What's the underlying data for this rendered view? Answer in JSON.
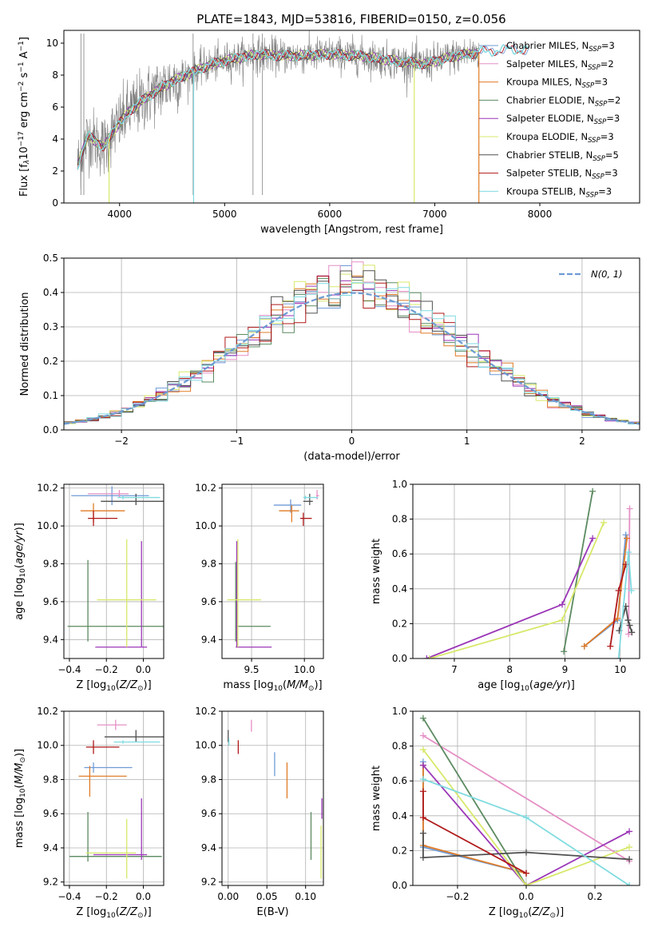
{
  "figure_title": "PLATE=1843, MJD=53816, FIBERID=0150, z=0.056",
  "colors": {
    "chabrier_miles": "#6f9bd6",
    "salpeter_miles": "#e58fc5",
    "kroupa_miles": "#e07b26",
    "chabrier_elodie": "#5b8a60",
    "salpeter_elodie": "#9b36b7",
    "kroupa_elodie": "#d8e86a",
    "chabrier_stelib": "#505050",
    "salpeter_stelib": "#b01818",
    "kroupa_stelib": "#7fdbe0",
    "data": "#808080",
    "gauss": "#6e9bd2"
  },
  "chart_data": [
    {
      "id": "spectrum",
      "type": "line",
      "xlabel": "wavelength [Angstrom, rest frame]",
      "ylabel": "Flux [f_λ10^-17 erg cm^-2 s^-1 A^-1]",
      "xlim": [
        3470,
        8950
      ],
      "ylim": [
        0,
        10.8
      ],
      "xticks": [
        4000,
        5000,
        6000,
        7000,
        8000
      ],
      "yticks": [
        0,
        2,
        4,
        6,
        8,
        10
      ],
      "continuum_x": [
        3600,
        3700,
        3850,
        3950,
        4100,
        4300,
        4500,
        4800,
        5000,
        5300,
        5600,
        6000,
        6300,
        6600,
        6900,
        7200,
        7500,
        7700,
        7900
      ],
      "continuum_y": [
        2.4,
        4.2,
        3.5,
        4.6,
        5.8,
        6.8,
        7.6,
        8.5,
        8.9,
        9.3,
        9.2,
        9.3,
        9.2,
        8.9,
        8.7,
        9.2,
        9.5,
        9.6,
        9.6
      ],
      "legend": [
        {
          "label": "Chabrier MILES, N",
          "sub": "SSP",
          "suffix": "=3",
          "color_key": "chabrier_miles"
        },
        {
          "label": "Salpeter MILES, N",
          "sub": "SSP",
          "suffix": "=2",
          "color_key": "salpeter_miles"
        },
        {
          "label": "Kroupa MILES, N",
          "sub": "SSP",
          "suffix": "=3",
          "color_key": "kroupa_miles"
        },
        {
          "label": "Chabrier ELODIE, N",
          "sub": "SSP",
          "suffix": "=2",
          "color_key": "chabrier_elodie"
        },
        {
          "label": "Salpeter ELODIE, N",
          "sub": "SSP",
          "suffix": "=3",
          "color_key": "salpeter_elodie"
        },
        {
          "label": "Kroupa ELODIE, N",
          "sub": "SSP",
          "suffix": "=3",
          "color_key": "kroupa_elodie"
        },
        {
          "label": "Chabrier STELIB, N",
          "sub": "SSP",
          "suffix": "=5",
          "color_key": "chabrier_stelib"
        },
        {
          "label": "Salpeter STELIB, N",
          "sub": "SSP",
          "suffix": "=3",
          "color_key": "salpeter_stelib"
        },
        {
          "label": "Kroupa STELIB, N",
          "sub": "SSP",
          "suffix": "=3",
          "color_key": "kroupa_stelib"
        }
      ]
    },
    {
      "id": "residuals",
      "type": "line",
      "xlabel": "(data-model)/error",
      "ylabel": "Normed distribution",
      "xlim": [
        -2.5,
        2.5
      ],
      "ylim": [
        0,
        0.5
      ],
      "xticks": [
        -2,
        -1,
        0,
        1,
        2
      ],
      "yticks": [
        0.0,
        0.1,
        0.2,
        0.3,
        0.4,
        0.5
      ],
      "legend_label": "N(0,1)",
      "gauss_sigma": 1
    },
    {
      "id": "age_vs_z",
      "type": "scatter",
      "xlabel": "Z [log10(Z/Z☉)]",
      "ylabel": "age  [log10(age/yr)]",
      "xlim": [
        -0.43,
        0.11
      ],
      "ylim": [
        9.3,
        10.22
      ],
      "xticks": [
        -0.4,
        -0.2,
        0.0
      ],
      "yticks": [
        9.4,
        9.6,
        9.8,
        10.0,
        10.2
      ],
      "points": [
        {
          "c": "chabrier_miles",
          "x": -0.17,
          "y": 10.16,
          "ex": [
            0.22,
            0.2
          ],
          "ey": [
            0.05,
            0.05
          ]
        },
        {
          "c": "salpeter_miles",
          "x": -0.13,
          "y": 10.17,
          "ex": [
            0.17,
            0.05
          ],
          "ey": [
            0.02,
            0.02
          ]
        },
        {
          "c": "kroupa_miles",
          "x": -0.27,
          "y": 10.08,
          "ex": [
            0.07,
            0.17
          ],
          "ey": [
            0.06,
            0.04
          ]
        },
        {
          "c": "chabrier_elodie",
          "x": -0.3,
          "y": 9.47,
          "ex": [
            0.11,
            0.42
          ],
          "ey": [
            0.08,
            0.35
          ]
        },
        {
          "c": "salpeter_elodie",
          "x": -0.01,
          "y": 9.36,
          "ex": [
            0.25,
            0.03
          ],
          "ey": [
            0.0,
            0.56
          ]
        },
        {
          "c": "kroupa_elodie",
          "x": -0.09,
          "y": 9.61,
          "ex": [
            0.16,
            0.16
          ],
          "ey": [
            0.25,
            0.32
          ]
        },
        {
          "c": "chabrier_stelib",
          "x": -0.04,
          "y": 10.13,
          "ex": [
            0.19,
            0.17
          ],
          "ey": [
            0.02,
            0.04
          ]
        },
        {
          "c": "salpeter_stelib",
          "x": -0.27,
          "y": 10.04,
          "ex": [
            0.03,
            0.13
          ],
          "ey": [
            0.04,
            0.04
          ]
        },
        {
          "c": "kroupa_stelib",
          "x": -0.11,
          "y": 10.15,
          "ex": [
            0.03,
            0.2
          ],
          "ey": [
            0.01,
            0.01
          ]
        }
      ]
    },
    {
      "id": "age_vs_mass",
      "type": "scatter",
      "xlabel": "mass [log10(M/M☉)]",
      "ylabel": "",
      "xlim": [
        9.22,
        10.18
      ],
      "ylim": [
        9.3,
        10.22
      ],
      "xticks": [
        9.5,
        10.0
      ],
      "yticks": [
        9.4,
        9.6,
        9.8,
        10.0,
        10.2
      ],
      "points": [
        {
          "c": "chabrier_miles",
          "x": 9.87,
          "y": 10.11,
          "ex": [
            0.16,
            0.1
          ],
          "ey": [
            0.04,
            0.03
          ]
        },
        {
          "c": "salpeter_miles",
          "x": 10.12,
          "y": 10.16,
          "ex": [
            0.01,
            0.02
          ],
          "ey": [
            0.02,
            0.03
          ]
        },
        {
          "c": "kroupa_miles",
          "x": 9.88,
          "y": 10.08,
          "ex": [
            0.12,
            0.07
          ],
          "ey": [
            0.06,
            0.03
          ]
        },
        {
          "c": "chabrier_elodie",
          "x": 9.35,
          "y": 9.47,
          "ex": [
            0.0,
            0.33
          ],
          "ey": [
            0.08,
            0.34
          ]
        },
        {
          "c": "salpeter_elodie",
          "x": 9.36,
          "y": 9.36,
          "ex": [
            0.01,
            0.33
          ],
          "ey": [
            0.0,
            0.56
          ]
        },
        {
          "c": "kroupa_elodie",
          "x": 9.37,
          "y": 9.61,
          "ex": [
            0.1,
            0.22
          ],
          "ey": [
            0.25,
            0.32
          ]
        },
        {
          "c": "chabrier_stelib",
          "x": 10.05,
          "y": 10.13,
          "ex": [
            0.06,
            0.03
          ],
          "ey": [
            0.02,
            0.04
          ]
        },
        {
          "c": "salpeter_stelib",
          "x": 9.99,
          "y": 10.04,
          "ex": [
            0.03,
            0.08
          ],
          "ey": [
            0.04,
            0.03
          ]
        },
        {
          "c": "kroupa_stelib",
          "x": 10.01,
          "y": 10.15,
          "ex": [
            0.02,
            0.12
          ],
          "ey": [
            0.01,
            0.01
          ]
        }
      ]
    },
    {
      "id": "weight_vs_age",
      "type": "line",
      "xlabel": "age  [log10(age/yr)]",
      "ylabel": "mass weight",
      "xlim": [
        6.25,
        10.35
      ],
      "ylim": [
        0,
        1.0
      ],
      "xticks": [
        7,
        8,
        9,
        10
      ],
      "yticks": [
        0.0,
        0.2,
        0.4,
        0.6,
        0.8,
        1.0
      ],
      "series": [
        {
          "c": "chabrier_miles",
          "x": [
            9.35,
            9.95,
            10.1
          ],
          "y": [
            0.07,
            0.22,
            0.71
          ]
        },
        {
          "c": "salpeter_miles",
          "x": [
            10.15,
            10.17
          ],
          "y": [
            0.14,
            0.86
          ]
        },
        {
          "c": "kroupa_miles",
          "x": [
            9.35,
            9.95,
            10.12
          ],
          "y": [
            0.07,
            0.23,
            0.69
          ]
        },
        {
          "c": "chabrier_elodie",
          "x": [
            8.98,
            9.5
          ],
          "y": [
            0.04,
            0.96
          ]
        },
        {
          "c": "salpeter_elodie",
          "x": [
            6.5,
            8.95,
            9.5
          ],
          "y": [
            0.0,
            0.31,
            0.69
          ]
        },
        {
          "c": "kroupa_elodie",
          "x": [
            6.55,
            8.95,
            9.7
          ],
          "y": [
            0.0,
            0.22,
            0.78
          ]
        },
        {
          "c": "chabrier_stelib",
          "x": [
            9.98,
            10.1,
            10.14,
            10.17,
            10.21
          ],
          "y": [
            0.16,
            0.3,
            0.22,
            0.19,
            0.15
          ]
        },
        {
          "c": "salpeter_stelib",
          "x": [
            9.82,
            9.97,
            10.1
          ],
          "y": [
            0.07,
            0.39,
            0.54
          ]
        },
        {
          "c": "kroupa_stelib",
          "x": [
            9.97,
            10.15,
            10.2
          ],
          "y": [
            0.0,
            0.61,
            0.39
          ]
        }
      ]
    },
    {
      "id": "mass_vs_z",
      "type": "scatter",
      "xlabel": "Z [log10(Z/Z☉)]",
      "ylabel": "mass [log10(M/M☉)]",
      "xlim": [
        -0.43,
        0.11
      ],
      "ylim": [
        9.18,
        10.2
      ],
      "xticks": [
        -0.4,
        -0.2,
        0.0
      ],
      "yticks": [
        9.2,
        9.4,
        9.6,
        9.8,
        10.0,
        10.2
      ],
      "points": [
        {
          "c": "chabrier_miles",
          "x": -0.27,
          "y": 9.87,
          "ex": [
            0.05,
            0.21
          ],
          "ey": [
            0.03,
            0.03
          ]
        },
        {
          "c": "salpeter_miles",
          "x": -0.15,
          "y": 10.12,
          "ex": [
            0.1,
            0.06
          ],
          "ey": [
            0.03,
            0.03
          ]
        },
        {
          "c": "kroupa_miles",
          "x": -0.29,
          "y": 9.82,
          "ex": [
            0.06,
            0.2
          ],
          "ey": [
            0.12,
            0.06
          ]
        },
        {
          "c": "chabrier_elodie",
          "x": -0.3,
          "y": 9.35,
          "ex": [
            0.1,
            0.4
          ],
          "ey": [
            0.03,
            0.26
          ]
        },
        {
          "c": "salpeter_elodie",
          "x": -0.01,
          "y": 9.36,
          "ex": [
            0.26,
            0.03
          ],
          "ey": [
            0.03,
            0.33
          ]
        },
        {
          "c": "kroupa_elodie",
          "x": -0.09,
          "y": 9.37,
          "ex": [
            0.22,
            0.05
          ],
          "ey": [
            0.15,
            0.2
          ]
        },
        {
          "c": "chabrier_stelib",
          "x": -0.04,
          "y": 10.05,
          "ex": [
            0.17,
            0.15
          ],
          "ey": [
            0.03,
            0.04
          ]
        },
        {
          "c": "salpeter_stelib",
          "x": -0.27,
          "y": 9.99,
          "ex": [
            0.04,
            0.14
          ],
          "ey": [
            0.04,
            0.04
          ]
        },
        {
          "c": "kroupa_stelib",
          "x": -0.11,
          "y": 10.02,
          "ex": [
            0.05,
            0.2
          ],
          "ey": [
            0.01,
            0.01
          ]
        }
      ]
    },
    {
      "id": "mass_vs_ebv",
      "type": "scatter",
      "xlabel": "E(B-V)",
      "ylabel": "",
      "xlim": [
        -0.008,
        0.123
      ],
      "ylim": [
        9.18,
        10.2
      ],
      "xticks": [
        0.0,
        0.05,
        0.1
      ],
      "yticks": [
        9.2,
        9.4,
        9.6,
        9.8,
        10.0,
        10.2
      ],
      "points": [
        {
          "c": "chabrier_miles",
          "x": 0.06,
          "y": 9.87,
          "ex": [
            0,
            0
          ],
          "ey": [
            0.05,
            0.09
          ]
        },
        {
          "c": "salpeter_miles",
          "x": 0.03,
          "y": 10.11,
          "ex": [
            0,
            0
          ],
          "ey": [
            0.03,
            0.04
          ]
        },
        {
          "c": "kroupa_miles",
          "x": 0.076,
          "y": 9.83,
          "ex": [
            0,
            0
          ],
          "ey": [
            0.14,
            0.07
          ]
        },
        {
          "c": "chabrier_elodie",
          "x": 0.107,
          "y": 9.47,
          "ex": [
            0,
            0
          ],
          "ey": [
            0.14,
            0.14
          ]
        },
        {
          "c": "salpeter_elodie",
          "x": 0.121,
          "y": 9.63,
          "ex": [
            0,
            0
          ],
          "ey": [
            0.06,
            0.06
          ]
        },
        {
          "c": "kroupa_elodie",
          "x": 0.12,
          "y": 9.37,
          "ex": [
            0,
            0
          ],
          "ey": [
            0.15,
            0.16
          ]
        },
        {
          "c": "chabrier_stelib",
          "x": 0.0,
          "y": 10.04,
          "ex": [
            0,
            0
          ],
          "ey": [
            0.02,
            0.05
          ]
        },
        {
          "c": "salpeter_stelib",
          "x": 0.013,
          "y": 9.99,
          "ex": [
            0,
            0
          ],
          "ey": [
            0.04,
            0.04
          ]
        },
        {
          "c": "kroupa_stelib",
          "x": 0.001,
          "y": 10.02,
          "ex": [
            0,
            0
          ],
          "ey": [
            0.02,
            0.02
          ]
        }
      ]
    },
    {
      "id": "weight_vs_z",
      "type": "line",
      "xlabel": "Z [log10(Z/Z☉)]",
      "ylabel": "mass weight",
      "xlim": [
        -0.33,
        0.33
      ],
      "ylim": [
        0,
        1.0
      ],
      "xticks": [
        -0.2,
        0.0,
        0.2
      ],
      "yticks": [
        0.0,
        0.2,
        0.4,
        0.6,
        0.8,
        1.0
      ],
      "series": [
        {
          "c": "chabrier_miles",
          "x": [
            -0.3,
            -0.3,
            0.0
          ],
          "y": [
            0.71,
            0.22,
            0.07
          ]
        },
        {
          "c": "salpeter_miles",
          "x": [
            -0.3,
            0.3
          ],
          "y": [
            0.86,
            0.14
          ]
        },
        {
          "c": "kroupa_miles",
          "x": [
            -0.3,
            -0.3,
            0.0
          ],
          "y": [
            0.69,
            0.23,
            0.07
          ]
        },
        {
          "c": "chabrier_elodie",
          "x": [
            -0.3,
            0.0
          ],
          "y": [
            0.96,
            0.0
          ]
        },
        {
          "c": "salpeter_elodie",
          "x": [
            -0.3,
            0.0,
            0.3
          ],
          "y": [
            0.69,
            0.0,
            0.31
          ]
        },
        {
          "c": "kroupa_elodie",
          "x": [
            -0.3,
            0.0,
            0.3
          ],
          "y": [
            0.78,
            0.0,
            0.22
          ]
        },
        {
          "c": "chabrier_stelib",
          "x": [
            -0.3,
            -0.3,
            0.0,
            0.3
          ],
          "y": [
            0.3,
            0.16,
            0.19,
            0.15
          ]
        },
        {
          "c": "salpeter_stelib",
          "x": [
            -0.3,
            -0.3,
            0.0
          ],
          "y": [
            0.54,
            0.39,
            0.07
          ]
        },
        {
          "c": "kroupa_stelib",
          "x": [
            -0.3,
            0.0,
            0.3
          ],
          "y": [
            0.61,
            0.39,
            0.0
          ]
        }
      ]
    }
  ]
}
